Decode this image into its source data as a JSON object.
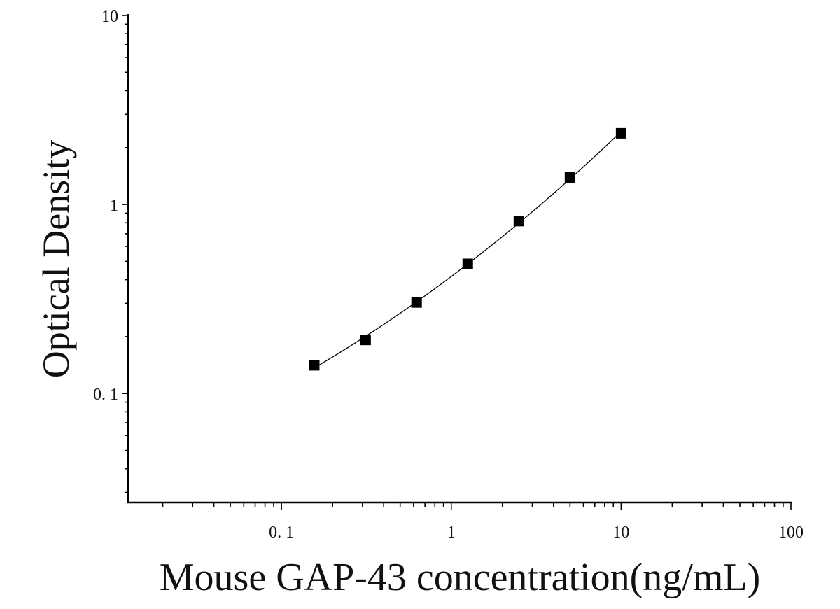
{
  "chart_data": {
    "type": "scatter",
    "title": "",
    "xlabel": "Mouse GAP-43 concentration(ng/mL)",
    "ylabel": "Optical Density",
    "x_scale": "log",
    "y_scale": "log",
    "xlim": [
      0.0125,
      100
    ],
    "ylim": [
      0.0265,
      10
    ],
    "x_ticks": [
      0.1,
      1,
      10,
      100
    ],
    "x_tick_labels": [
      "0. 1",
      "1",
      "10",
      "100"
    ],
    "y_ticks": [
      0.1,
      1,
      10
    ],
    "y_tick_labels": [
      "0. 1",
      "1",
      "10"
    ],
    "grid": false,
    "legend": "none",
    "marker": "square",
    "fit_curve": true,
    "colors": {
      "marker": "#000000",
      "curve": "#000000",
      "axis": "#000000"
    },
    "series": [
      {
        "x": [
          0.156,
          0.313,
          0.625,
          1.25,
          2.5,
          5,
          10
        ],
        "y": [
          0.141,
          0.192,
          0.303,
          0.485,
          0.817,
          1.39,
          2.38
        ]
      }
    ]
  }
}
